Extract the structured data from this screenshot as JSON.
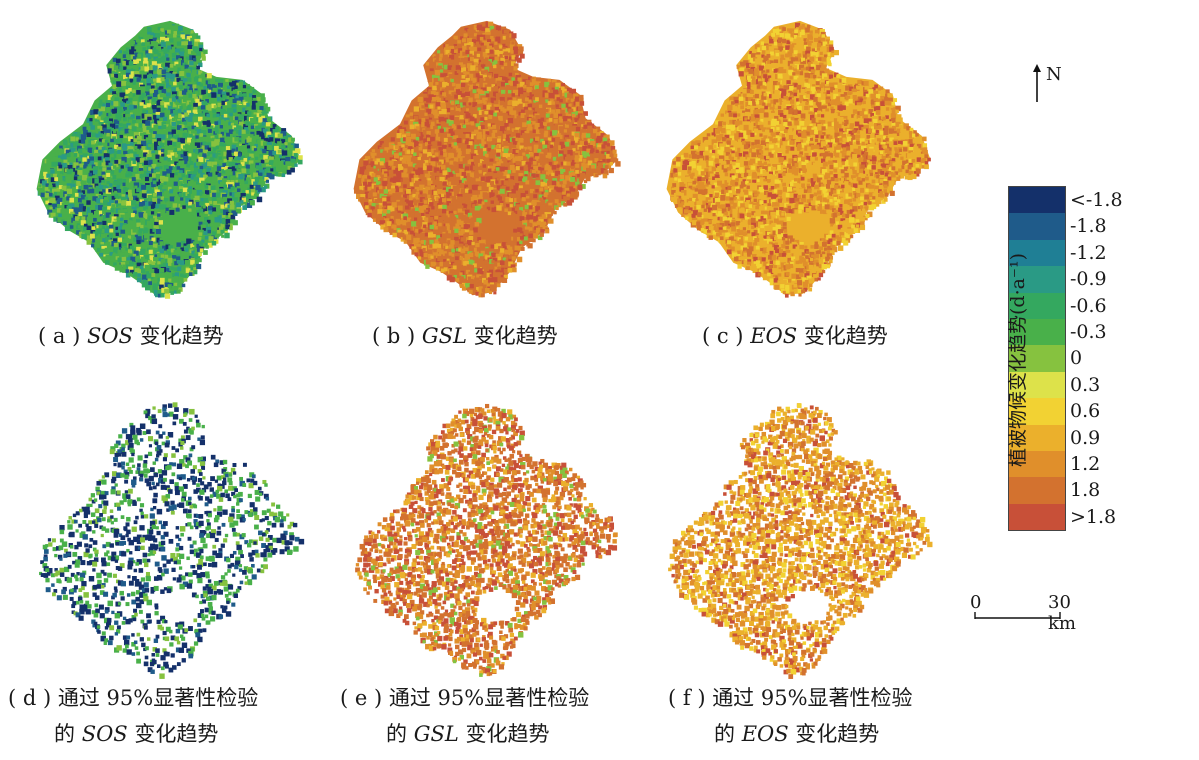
{
  "panels": [
    {
      "letter": "a",
      "pre": "",
      "var": "SOS",
      "post": " 变化趋势",
      "line2": null,
      "scheme": "sos",
      "density": 1.0
    },
    {
      "letter": "b",
      "pre": "",
      "var": "GSL",
      "post": " 变化趋势",
      "line2": null,
      "scheme": "gsl",
      "density": 1.0
    },
    {
      "letter": "c",
      "pre": "",
      "var": "EOS",
      "post": " 变化趋势",
      "line2": null,
      "scheme": "eos",
      "density": 1.0
    },
    {
      "letter": "d",
      "pre": "通过 95%显著性检验",
      "var": "SOS",
      "post": " 变化趋势",
      "line2": "的",
      "scheme": "sos_sig",
      "density": 0.45
    },
    {
      "letter": "e",
      "pre": "通过 95%显著性检验",
      "var": "GSL",
      "post": " 变化趋势",
      "line2": "的",
      "scheme": "gsl",
      "density": 0.75
    },
    {
      "letter": "f",
      "pre": "通过 95%显著性检验",
      "var": "EOS",
      "post": " 变化趋势",
      "line2": "的",
      "scheme": "eos",
      "density": 0.75
    }
  ],
  "legend": {
    "title": "植被物候变化趋势(d·a⁻¹)",
    "classes": [
      {
        "label": "<-1.8",
        "color": "#14306a"
      },
      {
        "label": "-1.8",
        "color": "#1f5b8a"
      },
      {
        "label": "-1.2",
        "color": "#1f7f95"
      },
      {
        "label": "-0.9",
        "color": "#2a9a85"
      },
      {
        "label": "-0.6",
        "color": "#34a85f"
      },
      {
        "label": "-0.3",
        "color": "#49b04a"
      },
      {
        "label": "0",
        "color": "#86c23f"
      },
      {
        "label": "0.3",
        "color": "#dde24a"
      },
      {
        "label": "0.6",
        "color": "#f2d233"
      },
      {
        "label": "0.9",
        "color": "#ebb02c"
      },
      {
        "label": "1.2",
        "color": "#e08f2b"
      },
      {
        "label": "1.8",
        "color": "#d3722f"
      },
      {
        "label": ">1.8",
        "color": "#c85038"
      }
    ]
  },
  "north": "N",
  "scale": {
    "start": "0",
    "end": "30 km"
  }
}
